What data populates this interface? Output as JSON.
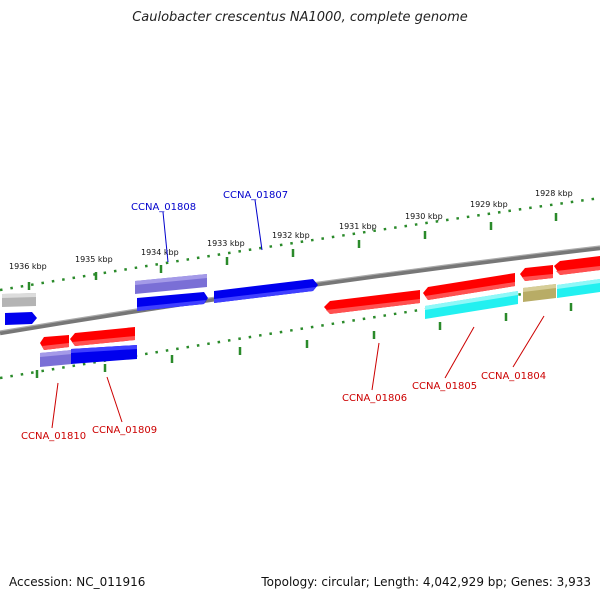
{
  "title": "Caulobacter crescentus NA1000, complete genome",
  "footer": {
    "accession": "Accession: NC_011916",
    "summary": "Topology: circular; Length: 4,042,929 bp; Genes: 3,933"
  },
  "colors": {
    "backbone": "#7a7a7a",
    "ticks": "#2a8a2a",
    "red": "#ff0000",
    "blue": "#0000ee",
    "purple": "#7a6fd6",
    "cyan": "#22f0f0",
    "olive": "#b8ac66",
    "gray": "#b4b4b4",
    "label_blue": "#0000cc",
    "label_red": "#cc0000"
  },
  "scale_labels": [
    "1936 kbp",
    "1935 kbp",
    "1934 kbp",
    "1933 kbp",
    "1932 kbp",
    "1931 kbp",
    "1930 kbp",
    "1929 kbp",
    "1928 kbp"
  ],
  "gene_labels": {
    "ccna_01808": "CCNA_01808",
    "ccna_01807": "CCNA_01807",
    "ccna_01810": "CCNA_01810",
    "ccna_01809": "CCNA_01809",
    "ccna_01806": "CCNA_01806",
    "ccna_01805": "CCNA_01805",
    "ccna_01804": "CCNA_01804"
  }
}
